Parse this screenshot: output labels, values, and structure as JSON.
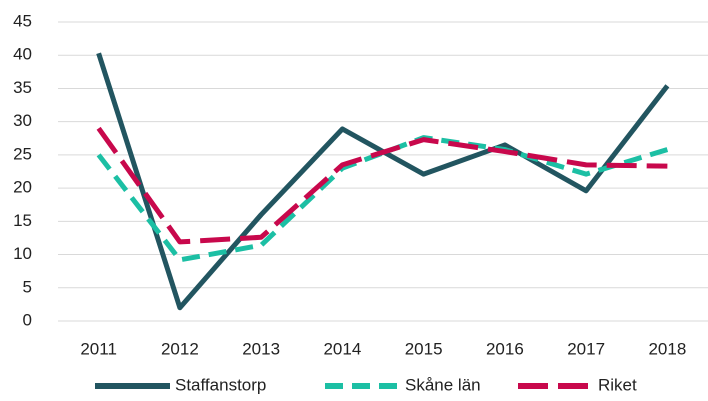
{
  "chart_data": {
    "type": "line",
    "categories": [
      "2011",
      "2012",
      "2013",
      "2014",
      "2015",
      "2016",
      "2017",
      "2018"
    ],
    "series": [
      {
        "name": "Staffanstorp",
        "color": "#225560",
        "dash": "solid",
        "values": [
          40.3,
          2,
          16,
          28.9,
          22.1,
          26.5,
          19.6,
          35.4
        ]
      },
      {
        "name": "Skåne län",
        "color": "#1cbfa4",
        "dash": "dashed",
        "values": [
          25,
          9.2,
          11.4,
          23,
          27.6,
          25.8,
          22.1,
          25.8
        ]
      },
      {
        "name": "Riket",
        "color": "#c8084c",
        "dash": "longdash",
        "values": [
          29,
          11.9,
          12.6,
          23.5,
          27.3,
          25.5,
          23.5,
          23.3
        ]
      }
    ],
    "ylim": [
      0,
      45
    ],
    "yticks": [
      0,
      5,
      10,
      15,
      20,
      25,
      30,
      35,
      40,
      45
    ],
    "grid": true,
    "legend": "bottom"
  }
}
